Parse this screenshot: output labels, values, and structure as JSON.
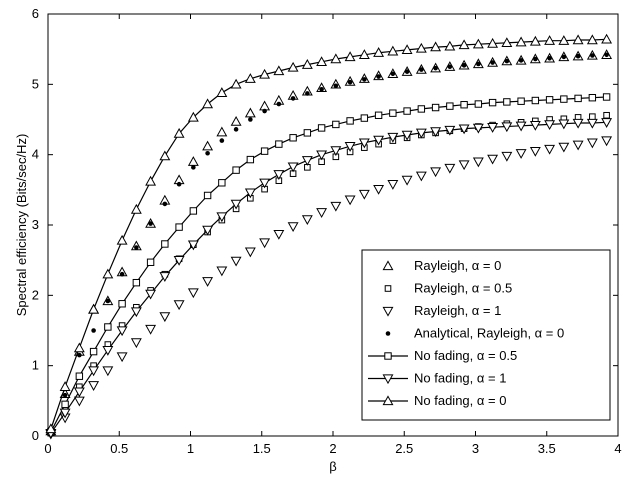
{
  "chart_data": {
    "type": "line",
    "title": "",
    "xlabel": "β",
    "ylabel": "Spectral efficiency (Bits/sec/Hz)",
    "xlim": [
      0,
      4
    ],
    "ylim": [
      0,
      6
    ],
    "xticks": [
      "0",
      "0.5",
      "1",
      "1.5",
      "2",
      "2.5",
      "3",
      "3.5",
      "4"
    ],
    "yticks": [
      "0",
      "1",
      "2",
      "3",
      "4",
      "5",
      "6"
    ],
    "grid": false,
    "legend_position": "bottom-right",
    "series": [
      {
        "name": "Rayleigh, α = 0",
        "legend_label": "Rayleigh, α = 0",
        "style": "triangle-up-open",
        "x": [
          0.02,
          0.12,
          0.22,
          0.32,
          0.42,
          0.52,
          0.62,
          0.72,
          0.82,
          0.92,
          1.02,
          1.12,
          1.22,
          1.32,
          1.42,
          1.52,
          1.62,
          1.72,
          1.82,
          1.92,
          2.02,
          2.12,
          2.22,
          2.32,
          2.42,
          2.52,
          2.62,
          2.72,
          2.82,
          2.92,
          3.02,
          3.12,
          3.22,
          3.32,
          3.42,
          3.52,
          3.62,
          3.72,
          3.82,
          3.92
        ],
        "y": [
          0.07,
          0.6,
          1.2,
          1.8,
          1.92,
          2.33,
          2.7,
          3.02,
          3.35,
          3.64,
          3.9,
          4.12,
          4.32,
          4.47,
          4.59,
          4.69,
          4.77,
          4.84,
          4.9,
          4.95,
          5.0,
          5.04,
          5.08,
          5.12,
          5.15,
          5.18,
          5.21,
          5.23,
          5.25,
          5.27,
          5.29,
          5.31,
          5.33,
          5.34,
          5.36,
          5.37,
          5.39,
          5.4,
          5.41,
          5.42
        ]
      },
      {
        "name": "Rayleigh, α = 0.5",
        "legend_label": "Rayleigh, α = 0.5",
        "style": "square-open-small",
        "x": [
          0.02,
          0.12,
          0.22,
          0.32,
          0.42,
          0.52,
          0.62,
          0.72,
          0.82,
          0.92,
          1.02,
          1.12,
          1.22,
          1.32,
          1.42,
          1.52,
          1.62,
          1.72,
          1.82,
          1.92,
          2.02,
          2.12,
          2.22,
          2.32,
          2.42,
          2.52,
          2.62,
          2.72,
          2.82,
          2.92,
          3.02,
          3.12,
          3.22,
          3.32,
          3.42,
          3.52,
          3.62,
          3.72,
          3.82,
          3.92
        ],
        "y": [
          0.05,
          0.38,
          0.7,
          1.0,
          1.3,
          1.57,
          1.83,
          2.07,
          2.3,
          2.52,
          2.72,
          2.9,
          3.07,
          3.23,
          3.38,
          3.51,
          3.63,
          3.73,
          3.82,
          3.9,
          3.97,
          4.04,
          4.1,
          4.15,
          4.2,
          4.24,
          4.28,
          4.31,
          4.34,
          4.37,
          4.4,
          4.42,
          4.44,
          4.46,
          4.48,
          4.5,
          4.51,
          4.53,
          4.54,
          4.56
        ]
      },
      {
        "name": "Rayleigh, α = 1",
        "legend_label": "Rayleigh, α = 1",
        "style": "triangle-down-open",
        "x": [
          0.02,
          0.12,
          0.22,
          0.32,
          0.42,
          0.52,
          0.62,
          0.72,
          0.82,
          0.92,
          1.02,
          1.12,
          1.22,
          1.32,
          1.42,
          1.52,
          1.62,
          1.72,
          1.82,
          1.92,
          2.02,
          2.12,
          2.22,
          2.32,
          2.42,
          2.52,
          2.62,
          2.72,
          2.82,
          2.92,
          3.02,
          3.12,
          3.22,
          3.32,
          3.42,
          3.52,
          3.62,
          3.72,
          3.82,
          3.92
        ],
        "y": [
          0.03,
          0.26,
          0.5,
          0.72,
          0.93,
          1.13,
          1.33,
          1.52,
          1.7,
          1.87,
          2.04,
          2.2,
          2.35,
          2.49,
          2.62,
          2.75,
          2.87,
          2.98,
          3.08,
          3.18,
          3.27,
          3.36,
          3.44,
          3.51,
          3.58,
          3.64,
          3.7,
          3.76,
          3.81,
          3.86,
          3.9,
          3.94,
          3.98,
          4.02,
          4.05,
          4.08,
          4.11,
          4.14,
          4.17,
          4.2
        ]
      },
      {
        "name": "Analytical, Rayleigh, α = 0",
        "legend_label": "Analytical, Rayleigh, α = 0",
        "style": "dot",
        "x": [
          0.02,
          0.12,
          0.22,
          0.32,
          0.42,
          0.52,
          0.62,
          0.72,
          0.82,
          0.92,
          1.02,
          1.12,
          1.22,
          1.32,
          1.42,
          1.52,
          1.62,
          1.72,
          1.82,
          1.92,
          2.02,
          2.12,
          2.22,
          2.32,
          2.42,
          2.52,
          2.62,
          2.72,
          2.82,
          2.92,
          3.02,
          3.12,
          3.22,
          3.32,
          3.42,
          3.52,
          3.62,
          3.72,
          3.82,
          3.92
        ],
        "y": [
          0.07,
          0.58,
          1.15,
          1.5,
          1.92,
          2.3,
          2.68,
          3.02,
          3.3,
          3.58,
          3.82,
          4.02,
          4.2,
          4.36,
          4.5,
          4.62,
          4.72,
          4.8,
          4.87,
          4.93,
          4.98,
          5.03,
          5.07,
          5.11,
          5.15,
          5.18,
          5.21,
          5.23,
          5.25,
          5.27,
          5.29,
          5.31,
          5.33,
          5.34,
          5.36,
          5.37,
          5.39,
          5.4,
          5.41,
          5.42
        ]
      },
      {
        "name": "No fading, α = 0.5",
        "legend_label": "No fading, α = 0.5",
        "style": "line-square",
        "x": [
          0.02,
          0.12,
          0.22,
          0.32,
          0.42,
          0.52,
          0.62,
          0.72,
          0.82,
          0.92,
          1.02,
          1.12,
          1.22,
          1.32,
          1.42,
          1.52,
          1.62,
          1.72,
          1.82,
          1.92,
          2.02,
          2.12,
          2.22,
          2.32,
          2.42,
          2.52,
          2.62,
          2.72,
          2.82,
          2.92,
          3.02,
          3.12,
          3.22,
          3.32,
          3.42,
          3.52,
          3.62,
          3.72,
          3.82,
          3.92
        ],
        "y": [
          0.06,
          0.45,
          0.85,
          1.2,
          1.55,
          1.88,
          2.18,
          2.47,
          2.73,
          2.97,
          3.2,
          3.42,
          3.6,
          3.78,
          3.93,
          4.05,
          4.15,
          4.24,
          4.31,
          4.38,
          4.43,
          4.48,
          4.52,
          4.56,
          4.59,
          4.62,
          4.65,
          4.67,
          4.69,
          4.71,
          4.72,
          4.74,
          4.75,
          4.76,
          4.77,
          4.78,
          4.79,
          4.8,
          4.81,
          4.82
        ]
      },
      {
        "name": "No fading, α = 1",
        "legend_label": "No fading, α = 1",
        "style": "line-triangle-down",
        "x": [
          0.02,
          0.12,
          0.22,
          0.32,
          0.42,
          0.52,
          0.62,
          0.72,
          0.82,
          0.92,
          1.02,
          1.12,
          1.22,
          1.32,
          1.42,
          1.52,
          1.62,
          1.72,
          1.82,
          1.92,
          2.02,
          2.12,
          2.22,
          2.32,
          2.42,
          2.52,
          2.62,
          2.72,
          2.82,
          2.92,
          3.02,
          3.12,
          3.22,
          3.32,
          3.42,
          3.52,
          3.62,
          3.72,
          3.82,
          3.92
        ],
        "y": [
          0.04,
          0.33,
          0.63,
          0.93,
          1.22,
          1.5,
          1.77,
          2.02,
          2.27,
          2.5,
          2.72,
          2.93,
          3.12,
          3.3,
          3.46,
          3.6,
          3.72,
          3.83,
          3.92,
          4.0,
          4.06,
          4.12,
          4.17,
          4.21,
          4.25,
          4.28,
          4.31,
          4.33,
          4.35,
          4.37,
          4.38,
          4.39,
          4.4,
          4.41,
          4.42,
          4.43,
          4.44,
          4.45,
          4.45,
          4.46
        ]
      },
      {
        "name": "No fading, α = 0",
        "legend_label": "No fading, α = 0",
        "style": "line-triangle-up",
        "x": [
          0.02,
          0.12,
          0.22,
          0.32,
          0.42,
          0.52,
          0.62,
          0.72,
          0.82,
          0.92,
          1.02,
          1.12,
          1.22,
          1.32,
          1.42,
          1.52,
          1.62,
          1.72,
          1.82,
          1.92,
          2.02,
          2.12,
          2.22,
          2.32,
          2.42,
          2.52,
          2.62,
          2.72,
          2.82,
          2.92,
          3.02,
          3.12,
          3.22,
          3.32,
          3.42,
          3.52,
          3.62,
          3.72,
          3.82,
          3.92
        ],
        "y": [
          0.1,
          0.7,
          1.25,
          1.8,
          2.3,
          2.78,
          3.22,
          3.62,
          3.98,
          4.3,
          4.53,
          4.72,
          4.88,
          5.0,
          5.08,
          5.14,
          5.19,
          5.24,
          5.28,
          5.32,
          5.36,
          5.39,
          5.42,
          5.45,
          5.47,
          5.49,
          5.51,
          5.53,
          5.54,
          5.56,
          5.57,
          5.58,
          5.59,
          5.6,
          5.61,
          5.62,
          5.62,
          5.63,
          5.63,
          5.64
        ]
      }
    ]
  }
}
